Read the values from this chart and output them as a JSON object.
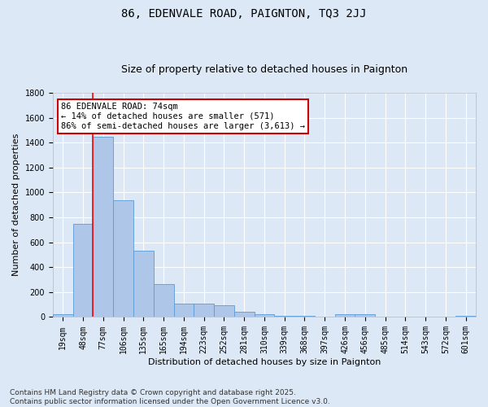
{
  "title1": "86, EDENVALE ROAD, PAIGNTON, TQ3 2JJ",
  "title2": "Size of property relative to detached houses in Paignton",
  "xlabel": "Distribution of detached houses by size in Paignton",
  "ylabel": "Number of detached properties",
  "categories": [
    "19sqm",
    "48sqm",
    "77sqm",
    "106sqm",
    "135sqm",
    "165sqm",
    "194sqm",
    "223sqm",
    "252sqm",
    "281sqm",
    "310sqm",
    "339sqm",
    "368sqm",
    "397sqm",
    "426sqm",
    "456sqm",
    "485sqm",
    "514sqm",
    "543sqm",
    "572sqm",
    "601sqm"
  ],
  "values": [
    22,
    750,
    1445,
    940,
    535,
    265,
    110,
    110,
    95,
    40,
    25,
    10,
    8,
    5,
    20,
    20,
    5,
    5,
    5,
    5,
    10
  ],
  "bar_color": "#aec6e8",
  "bar_edge_color": "#5b9bd5",
  "background_color": "#dce8f5",
  "grid_color": "#ffffff",
  "annotation_text": "86 EDENVALE ROAD: 74sqm\n← 14% of detached houses are smaller (571)\n86% of semi-detached houses are larger (3,613) →",
  "annotation_box_facecolor": "#ffffff",
  "annotation_box_edgecolor": "#cc0000",
  "red_line_category_idx": 2,
  "ylim": [
    0,
    1800
  ],
  "yticks": [
    0,
    200,
    400,
    600,
    800,
    1000,
    1200,
    1400,
    1600,
    1800
  ],
  "footnote": "Contains HM Land Registry data © Crown copyright and database right 2025.\nContains public sector information licensed under the Open Government Licence v3.0.",
  "title1_fontsize": 10,
  "title2_fontsize": 9,
  "xlabel_fontsize": 8,
  "ylabel_fontsize": 8,
  "tick_fontsize": 7,
  "annotation_fontsize": 7.5,
  "footnote_fontsize": 6.5
}
